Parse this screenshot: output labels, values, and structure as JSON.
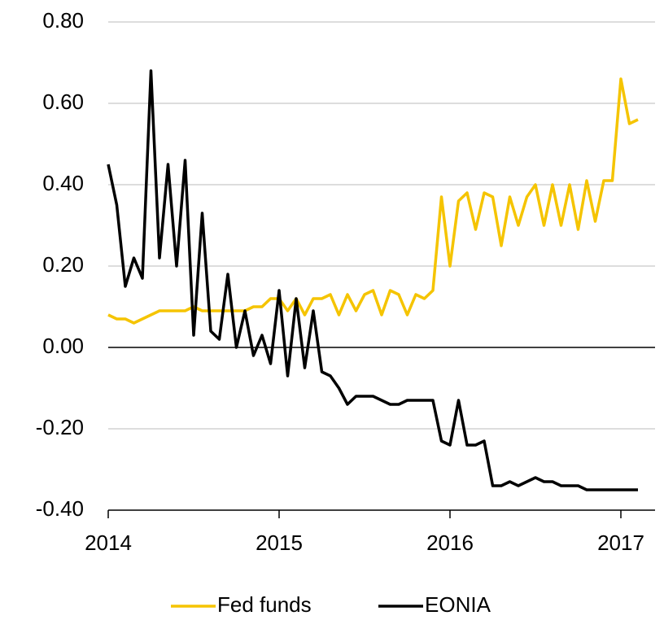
{
  "chart_data": {
    "type": "line",
    "x": [
      2014.0,
      2014.05,
      2014.1,
      2014.15,
      2014.2,
      2014.25,
      2014.3,
      2014.35,
      2014.4,
      2014.45,
      2014.5,
      2014.55,
      2014.6,
      2014.65,
      2014.7,
      2014.75,
      2014.8,
      2014.85,
      2014.9,
      2014.95,
      2015.0,
      2015.05,
      2015.1,
      2015.15,
      2015.2,
      2015.25,
      2015.3,
      2015.35,
      2015.4,
      2015.45,
      2015.5,
      2015.55,
      2015.6,
      2015.65,
      2015.7,
      2015.75,
      2015.8,
      2015.85,
      2015.9,
      2015.95,
      2016.0,
      2016.05,
      2016.1,
      2016.15,
      2016.2,
      2016.25,
      2016.3,
      2016.35,
      2016.4,
      2016.45,
      2016.5,
      2016.55,
      2016.6,
      2016.65,
      2016.7,
      2016.75,
      2016.8,
      2016.85,
      2016.9,
      2016.95,
      2017.0,
      2017.05,
      2017.1
    ],
    "series": [
      {
        "name": "Fed funds",
        "color": "#f5c400",
        "values": [
          0.08,
          0.07,
          0.07,
          0.06,
          0.07,
          0.08,
          0.09,
          0.09,
          0.09,
          0.09,
          0.1,
          0.09,
          0.09,
          0.09,
          0.09,
          0.09,
          0.09,
          0.1,
          0.1,
          0.12,
          0.12,
          0.09,
          0.12,
          0.08,
          0.12,
          0.12,
          0.13,
          0.08,
          0.13,
          0.09,
          0.13,
          0.14,
          0.08,
          0.14,
          0.13,
          0.08,
          0.13,
          0.12,
          0.14,
          0.37,
          0.2,
          0.36,
          0.38,
          0.29,
          0.38,
          0.37,
          0.25,
          0.37,
          0.3,
          0.37,
          0.4,
          0.3,
          0.4,
          0.3,
          0.4,
          0.29,
          0.41,
          0.31,
          0.41,
          0.41,
          0.66,
          0.55,
          0.56
        ]
      },
      {
        "name": "EONIA",
        "color": "#000000",
        "values": [
          0.45,
          0.35,
          0.15,
          0.22,
          0.17,
          0.68,
          0.22,
          0.45,
          0.2,
          0.46,
          0.03,
          0.33,
          0.04,
          0.02,
          0.18,
          0.0,
          0.09,
          -0.02,
          0.03,
          -0.04,
          0.14,
          -0.07,
          0.12,
          -0.05,
          0.09,
          -0.06,
          -0.07,
          -0.1,
          -0.14,
          -0.12,
          -0.12,
          -0.12,
          -0.13,
          -0.14,
          -0.14,
          -0.13,
          -0.13,
          -0.13,
          -0.13,
          -0.23,
          -0.24,
          -0.13,
          -0.24,
          -0.24,
          -0.23,
          -0.34,
          -0.34,
          -0.33,
          -0.34,
          -0.33,
          -0.32,
          -0.33,
          -0.33,
          -0.34,
          -0.34,
          -0.34,
          -0.35,
          -0.35,
          -0.35,
          -0.35,
          -0.35,
          -0.35,
          -0.35
        ]
      }
    ],
    "xlim": [
      2014,
      2017.2
    ],
    "xticks": [
      2014,
      2015,
      2016,
      2017
    ],
    "ylim": [
      -0.4,
      0.8
    ],
    "yticks": [
      {
        "value": -0.4,
        "label": "-0.40"
      },
      {
        "value": -0.2,
        "label": "-0.20"
      },
      {
        "value": 0,
        "label": "0.00"
      },
      {
        "value": 0.2,
        "label": "0.20"
      },
      {
        "value": 0.4,
        "label": "0.40"
      },
      {
        "value": 0.6,
        "label": "0.60"
      },
      {
        "value": 0.8,
        "label": "0.80"
      }
    ],
    "grid": true,
    "legend": "bottom"
  }
}
